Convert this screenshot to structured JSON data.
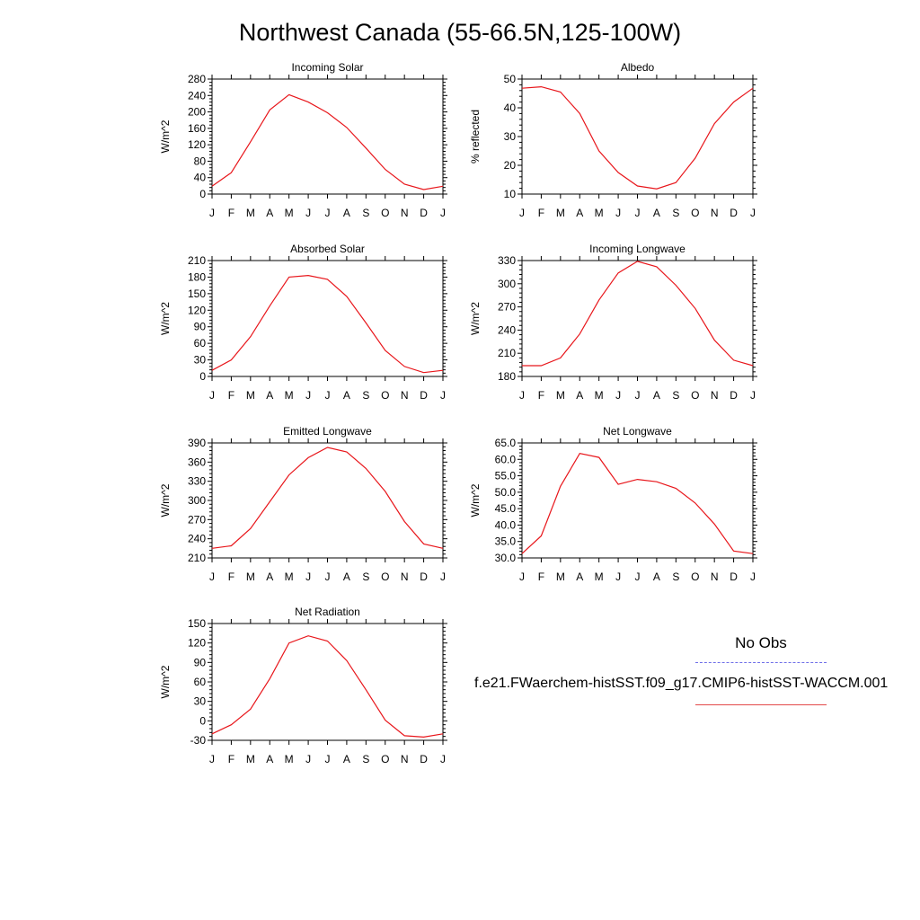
{
  "figure": {
    "title": "Northwest Canada (55-66.5N,125-100W)",
    "series_color": "#e8161b",
    "obs_color": "#6f6fe8"
  },
  "legend": {
    "heading": "No Obs",
    "model_label": "f.e21.FWaerchem-histSST.f09_g17.CMIP6-histSST-WACCM.001"
  },
  "chart_data": [
    {
      "type": "line",
      "title": "Incoming Solar",
      "ylabel": "W/m^2",
      "categories": [
        "J",
        "F",
        "M",
        "A",
        "M",
        "J",
        "J",
        "A",
        "S",
        "O",
        "N",
        "D",
        "J"
      ],
      "ylim": [
        0,
        280
      ],
      "yticks": [
        "0",
        "40",
        "80",
        "120",
        "160",
        "200",
        "240",
        "280"
      ],
      "series": [
        {
          "values": [
            19,
            52,
            127,
            205,
            242,
            224,
            198,
            162,
            112,
            60,
            24,
            11,
            19
          ]
        }
      ]
    },
    {
      "type": "line",
      "title": "Albedo",
      "ylabel": "% reflected",
      "categories": [
        "J",
        "F",
        "M",
        "A",
        "M",
        "J",
        "J",
        "A",
        "S",
        "O",
        "N",
        "D",
        "J"
      ],
      "ylim": [
        10,
        50
      ],
      "yticks": [
        "10",
        "20",
        "30",
        "40",
        "50"
      ],
      "series": [
        {
          "values": [
            46.8,
            47.3,
            45.5,
            38,
            25,
            17.5,
            12.8,
            11.8,
            14,
            22.5,
            34.5,
            42,
            46.8
          ]
        }
      ]
    },
    {
      "type": "line",
      "title": "Absorbed Solar",
      "ylabel": "W/m^2",
      "categories": [
        "J",
        "F",
        "M",
        "A",
        "M",
        "J",
        "J",
        "A",
        "S",
        "O",
        "N",
        "D",
        "J"
      ],
      "ylim": [
        0,
        210
      ],
      "yticks": [
        "0",
        "30",
        "60",
        "90",
        "120",
        "150",
        "180",
        "210"
      ],
      "series": [
        {
          "values": [
            11,
            30,
            72,
            128,
            180,
            183,
            176,
            145,
            97,
            47,
            18,
            7,
            11
          ]
        }
      ]
    },
    {
      "type": "line",
      "title": "Incoming Longwave",
      "ylabel": "W/m^2",
      "categories": [
        "J",
        "F",
        "M",
        "A",
        "M",
        "J",
        "J",
        "A",
        "S",
        "O",
        "N",
        "D",
        "J"
      ],
      "ylim": [
        180,
        330
      ],
      "yticks": [
        "180",
        "210",
        "240",
        "270",
        "300",
        "330"
      ],
      "series": [
        {
          "values": [
            194,
            194,
            204,
            235,
            279,
            314,
            329,
            322,
            298,
            268,
            227,
            201,
            194
          ]
        }
      ]
    },
    {
      "type": "line",
      "title": "Emitted Longwave",
      "ylabel": "W/m^2",
      "categories": [
        "J",
        "F",
        "M",
        "A",
        "M",
        "J",
        "J",
        "A",
        "S",
        "O",
        "N",
        "D",
        "J"
      ],
      "ylim": [
        210,
        390
      ],
      "yticks": [
        "210",
        "240",
        "270",
        "300",
        "330",
        "360",
        "390"
      ],
      "series": [
        {
          "values": [
            225,
            229,
            256,
            298,
            340,
            367,
            383,
            376,
            350,
            314,
            267,
            232,
            225
          ]
        }
      ]
    },
    {
      "type": "line",
      "title": "Net Longwave",
      "ylabel": "W/m^2",
      "categories": [
        "J",
        "F",
        "M",
        "A",
        "M",
        "J",
        "J",
        "A",
        "S",
        "O",
        "N",
        "D",
        "J"
      ],
      "ylim": [
        30,
        65
      ],
      "yticks": [
        "30.0",
        "35.0",
        "40.0",
        "45.0",
        "50.0",
        "55.0",
        "60.0",
        "65.0"
      ],
      "series": [
        {
          "values": [
            31.3,
            36.7,
            51.8,
            61.8,
            60.6,
            52.4,
            53.9,
            53.2,
            51.2,
            46.7,
            40.3,
            32.1,
            31.3
          ]
        }
      ]
    },
    {
      "type": "line",
      "title": "Net Radiation",
      "ylabel": "W/m^2",
      "categories": [
        "J",
        "F",
        "M",
        "A",
        "M",
        "J",
        "J",
        "A",
        "S",
        "O",
        "N",
        "D",
        "J"
      ],
      "ylim": [
        -30,
        150
      ],
      "yticks": [
        "-30",
        "0",
        "30",
        "60",
        "90",
        "120",
        "150"
      ],
      "series": [
        {
          "values": [
            -20,
            -6,
            18,
            65,
            120,
            131,
            123,
            93,
            48,
            1,
            -23,
            -25,
            -20
          ]
        }
      ]
    }
  ]
}
